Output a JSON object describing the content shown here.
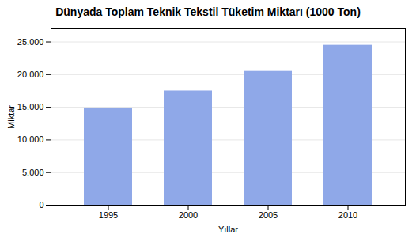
{
  "chart_data": {
    "type": "bar",
    "title": "Dünyada Toplam Teknik Tekstil Tüketim Miktarı (1000 Ton)",
    "xlabel": "Yıllar",
    "ylabel": "Miktar",
    "categories": [
      "1995",
      "2000",
      "2005",
      "2010"
    ],
    "values": [
      14900,
      17500,
      20500,
      24500
    ],
    "color": "#8fa8e8",
    "ylim": [
      0,
      27000
    ],
    "yticks": [
      0,
      {
        "value": 5000,
        "label": "5.000"
      },
      {
        "value": 10000,
        "label": "10.000"
      },
      {
        "value": 15000,
        "label": "15.000"
      },
      {
        "value": 20000,
        "label": "20.000"
      },
      {
        "value": 25000,
        "label": "25.000"
      }
    ],
    "grid": true
  }
}
